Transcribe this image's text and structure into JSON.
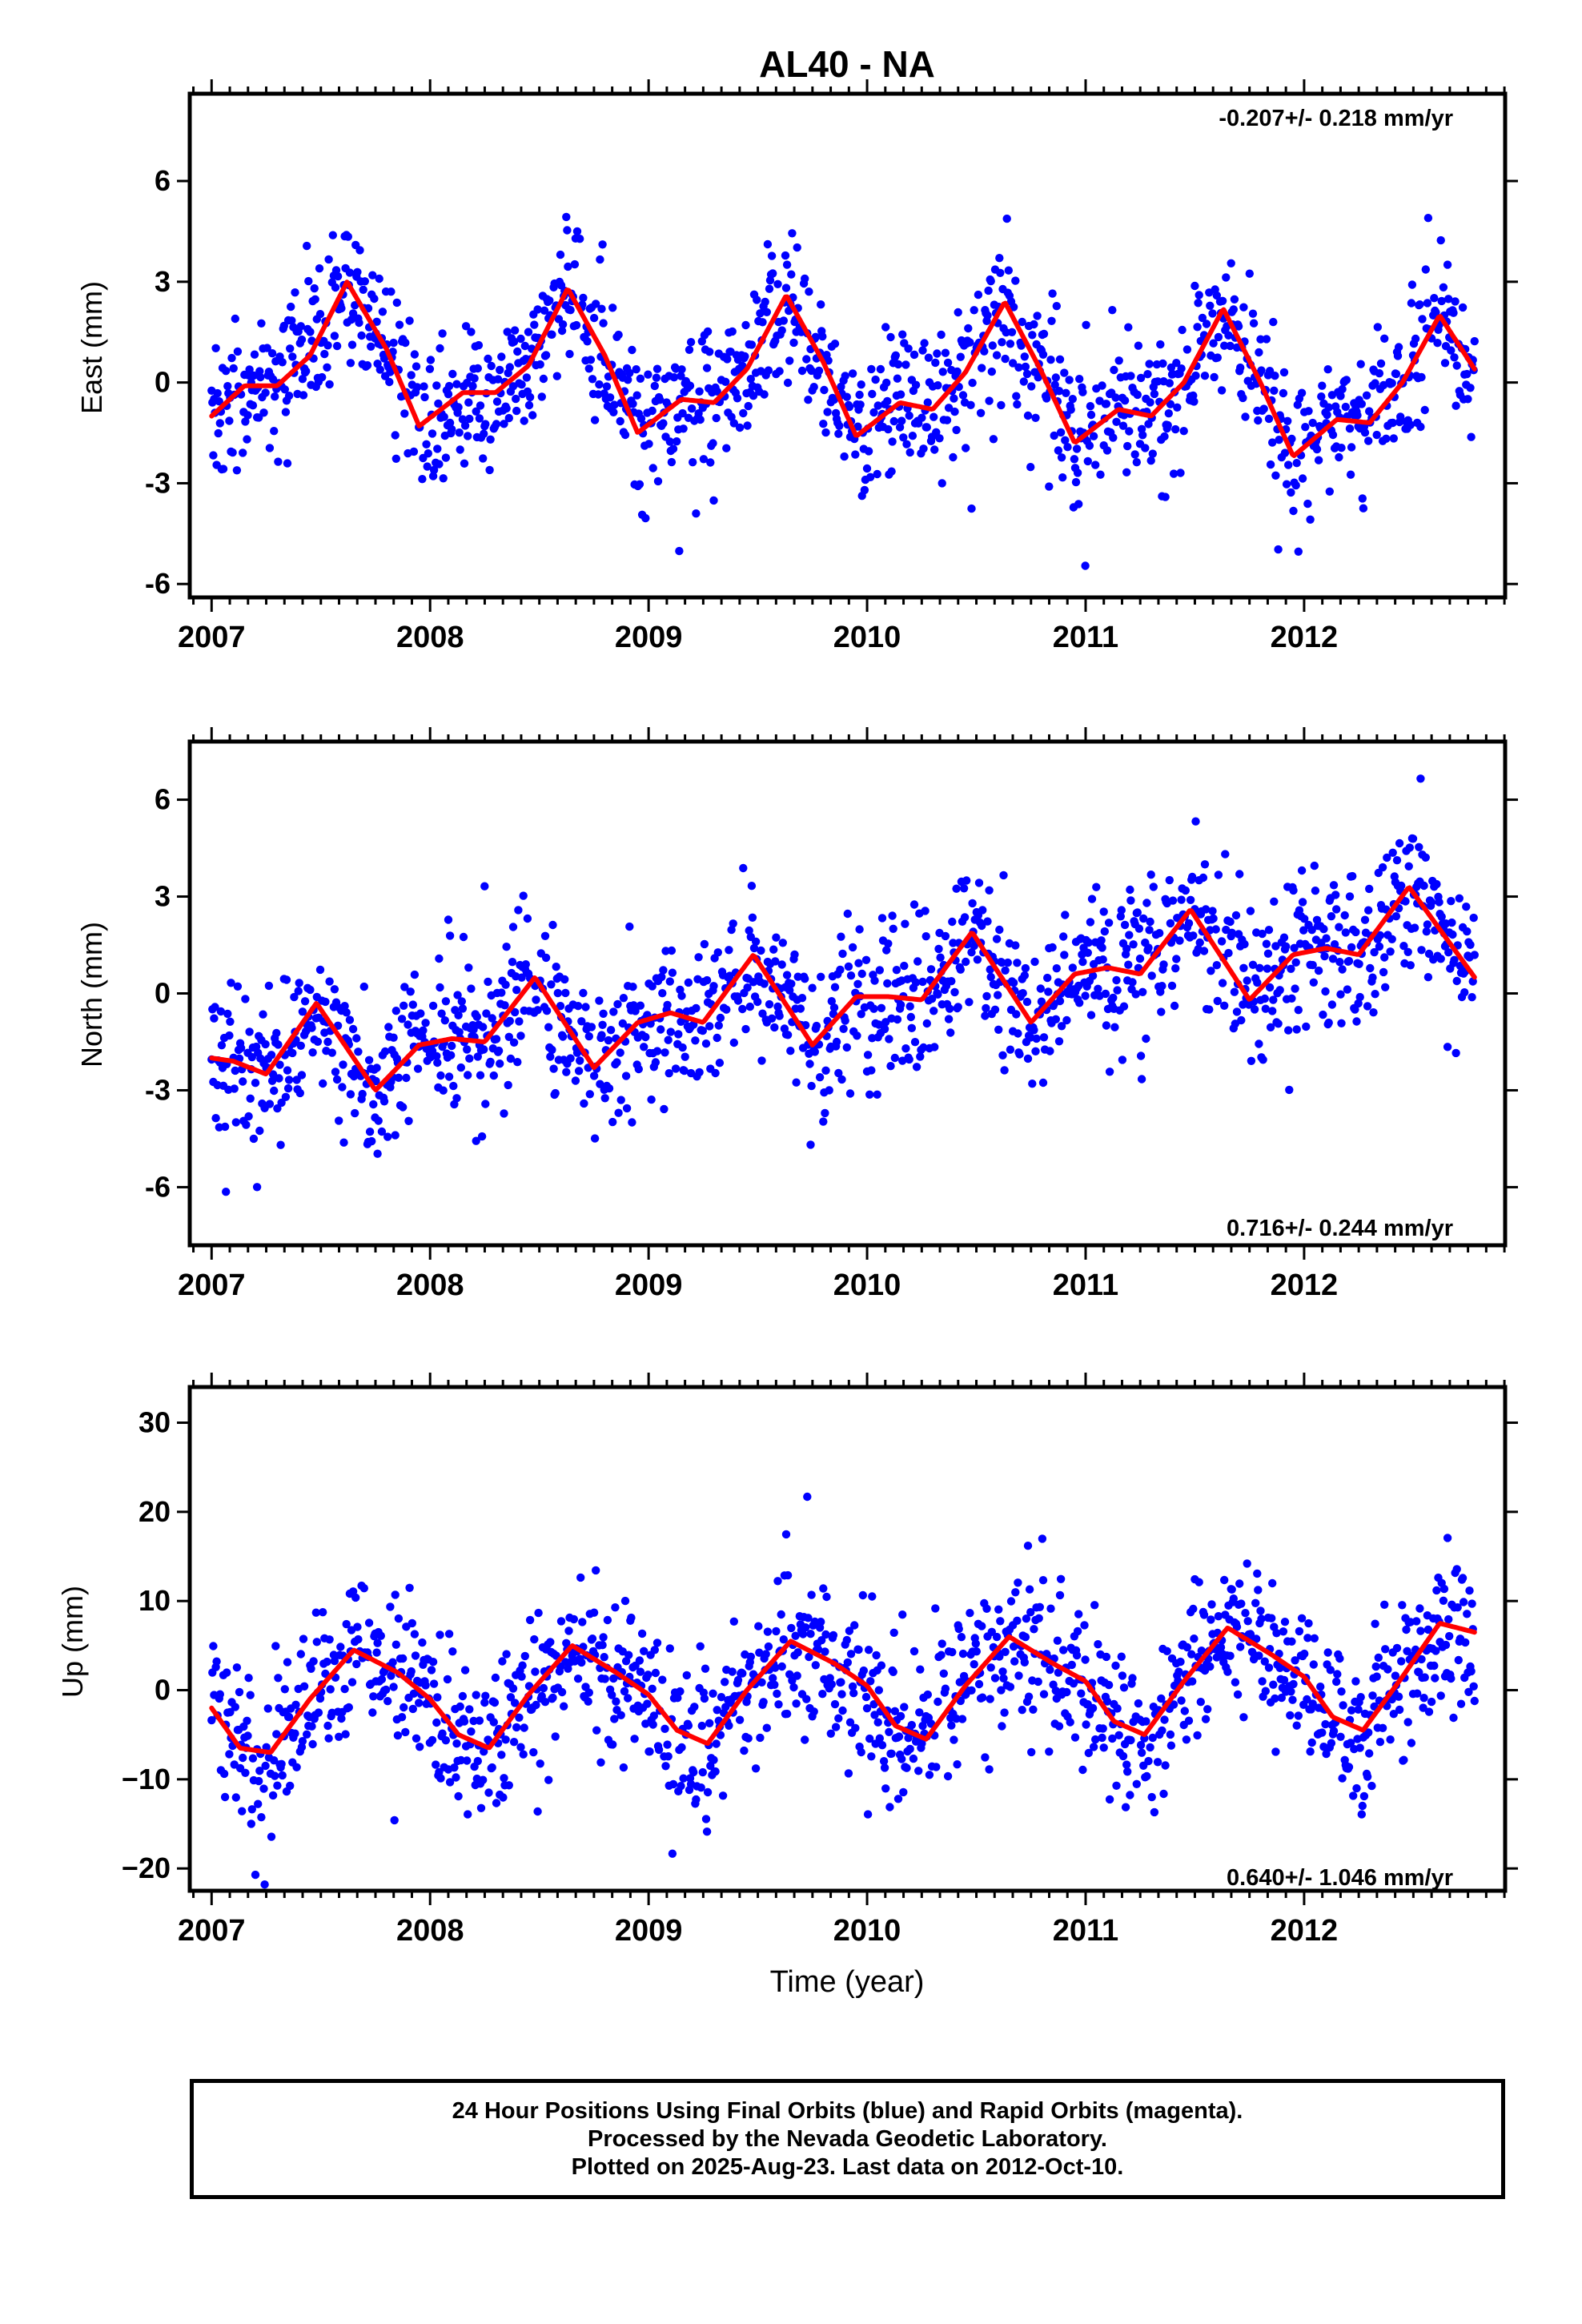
{
  "title": "AL40 - NA",
  "colors": {
    "final_orbits": "#0000ff",
    "model_fit": "#ff0000",
    "frame": "#000000"
  },
  "chart_data": [
    {
      "type": "scatter",
      "panel": "east",
      "ylabel": "East (mm)",
      "xlabel": "",
      "rate_label": "-0.207+/- 0.218 mm/yr",
      "rate_position": "top-right",
      "xlim": [
        2006.9,
        2012.92
      ],
      "ylim": [
        -6.4,
        8.6
      ],
      "xticks": [
        2007,
        2008,
        2009,
        2010,
        2011,
        2012
      ],
      "yticks": [
        -6,
        -3,
        0,
        3,
        6
      ],
      "ytick_labels": [
        "-6",
        "-3",
        "0",
        "3",
        "6"
      ],
      "series": [
        {
          "style": "points",
          "color": "#0000ff",
          "t_start": 2007.0,
          "t_end": 2012.78,
          "n": 1500,
          "trend": -0.207,
          "offset": -0.25,
          "noise_sd": 1.05
        },
        {
          "style": "line",
          "color": "#ff0000",
          "x": [
            2007.0,
            2007.15,
            2007.3,
            2007.45,
            2007.62,
            2007.8,
            2007.95,
            2008.15,
            2008.3,
            2008.45,
            2008.63,
            2008.8,
            2008.95,
            2009.15,
            2009.3,
            2009.45,
            2009.63,
            2009.8,
            2009.95,
            2010.15,
            2010.3,
            2010.45,
            2010.63,
            2010.8,
            2010.95,
            2011.15,
            2011.3,
            2011.45,
            2011.63,
            2011.8,
            2011.95,
            2012.15,
            2012.3,
            2012.45,
            2012.62,
            2012.78
          ],
          "y": [
            -1.0,
            -0.1,
            -0.1,
            0.8,
            3.0,
            1.0,
            -1.3,
            -0.3,
            -0.3,
            0.5,
            2.8,
            0.8,
            -1.5,
            -0.5,
            -0.6,
            0.4,
            2.6,
            0.6,
            -1.6,
            -0.6,
            -0.8,
            0.3,
            2.4,
            0.3,
            -1.8,
            -0.8,
            -1.0,
            0.0,
            2.2,
            0.0,
            -2.2,
            -1.1,
            -1.2,
            0.0,
            2.0,
            0.4
          ]
        }
      ]
    },
    {
      "type": "scatter",
      "panel": "north",
      "ylabel": "North (mm)",
      "xlabel": "",
      "rate_label": "0.716+/- 0.244 mm/yr",
      "rate_position": "bottom-right",
      "xlim": [
        2006.9,
        2012.92
      ],
      "ylim": [
        -7.8,
        7.8
      ],
      "xticks": [
        2007,
        2008,
        2009,
        2010,
        2011,
        2012
      ],
      "yticks": [
        -6,
        -3,
        0,
        3,
        6
      ],
      "ytick_labels": [
        "-6",
        "-3",
        "0",
        "3",
        "6"
      ],
      "series": [
        {
          "style": "points",
          "color": "#0000ff",
          "t_start": 2007.0,
          "t_end": 2012.78,
          "n": 1500,
          "trend": 0.716,
          "offset": -2.0,
          "noise_sd": 1.2
        },
        {
          "style": "line",
          "color": "#ff0000",
          "x": [
            2007.0,
            2007.1,
            2007.25,
            2007.48,
            2007.75,
            2007.95,
            2008.1,
            2008.25,
            2008.48,
            2008.75,
            2008.95,
            2009.1,
            2009.25,
            2009.48,
            2009.75,
            2009.95,
            2010.1,
            2010.25,
            2010.48,
            2010.75,
            2010.95,
            2011.1,
            2011.25,
            2011.48,
            2011.75,
            2011.95,
            2012.1,
            2012.25,
            2012.48,
            2012.78
          ],
          "y": [
            -2.0,
            -2.1,
            -2.5,
            -0.3,
            -3.0,
            -1.6,
            -1.4,
            -1.5,
            0.5,
            -2.3,
            -0.9,
            -0.6,
            -0.9,
            1.2,
            -1.6,
            -0.1,
            -0.1,
            -0.2,
            1.9,
            -0.9,
            0.6,
            0.8,
            0.6,
            2.6,
            -0.2,
            1.2,
            1.4,
            1.2,
            3.3,
            0.5
          ]
        }
      ]
    },
    {
      "type": "scatter",
      "panel": "up",
      "ylabel": "Up (mm)",
      "xlabel": "Time (year)",
      "rate_label": "0.640+/- 1.046 mm/yr",
      "rate_position": "bottom-right",
      "xlim": [
        2006.9,
        2012.92
      ],
      "ylim": [
        -22.5,
        34
      ],
      "xticks": [
        2007,
        2008,
        2009,
        2010,
        2011,
        2012
      ],
      "yticks": [
        -20,
        -10,
        0,
        10,
        20,
        30
      ],
      "ytick_labels": [
        "−20",
        "−10",
        "0",
        "10",
        "20",
        "30"
      ],
      "series": [
        {
          "style": "points",
          "color": "#0000ff",
          "t_start": 2007.0,
          "t_end": 2012.78,
          "n": 1500,
          "trend": 0.64,
          "offset": -2.0,
          "noise_sd": 4.2
        },
        {
          "style": "line",
          "color": "#ff0000",
          "x": [
            2007.0,
            2007.13,
            2007.27,
            2007.45,
            2007.65,
            2007.85,
            2008.0,
            2008.13,
            2008.27,
            2008.45,
            2008.65,
            2008.85,
            2009.0,
            2009.13,
            2009.27,
            2009.45,
            2009.65,
            2009.85,
            2010.0,
            2010.13,
            2010.27,
            2010.45,
            2010.65,
            2010.85,
            2011.0,
            2011.13,
            2011.27,
            2011.45,
            2011.65,
            2011.85,
            2012.0,
            2012.13,
            2012.27,
            2012.45,
            2012.62,
            2012.78
          ],
          "y": [
            -2.0,
            -6.5,
            -7.0,
            -1.0,
            4.5,
            2.0,
            -1.0,
            -5.0,
            -6.5,
            -0.5,
            5.0,
            2.0,
            -0.5,
            -4.5,
            -6.0,
            0.0,
            5.5,
            3.0,
            0.5,
            -4.0,
            -5.5,
            0.5,
            6.0,
            3.0,
            1.0,
            -3.5,
            -5.0,
            1.0,
            7.0,
            4.0,
            1.5,
            -3.0,
            -4.5,
            1.5,
            7.5,
            6.5
          ]
        }
      ]
    }
  ],
  "footer": {
    "line1": "24 Hour Positions Using Final Orbits (blue) and Rapid Orbits (magenta).",
    "line2": "Processed by the Nevada Geodetic Laboratory.",
    "line3": "Plotted on 2025-Aug-23. Last data on 2012-Oct-10."
  }
}
